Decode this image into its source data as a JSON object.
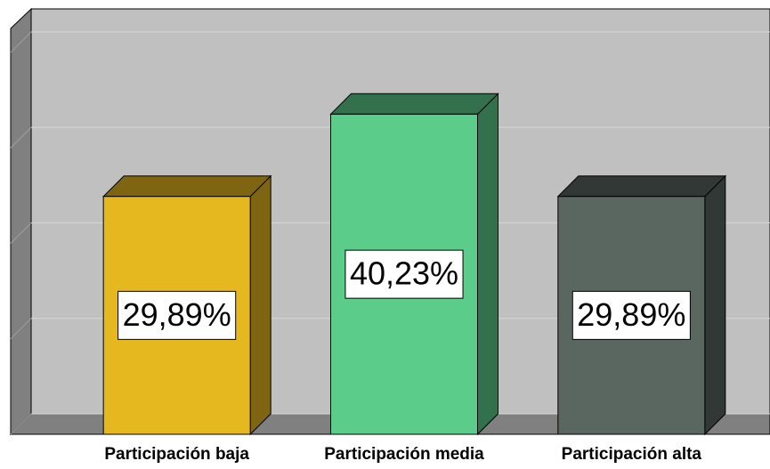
{
  "chart_data": {
    "type": "bar",
    "categories": [
      "Participación baja",
      "Participación media",
      "Participación alta"
    ],
    "values": [
      29.89,
      40.23,
      29.89
    ],
    "value_labels": [
      "29,89%",
      "40,23%",
      "29,89%"
    ],
    "colors": [
      "#e6b820",
      "#5ccc8a",
      "#5a6660"
    ],
    "ylim": [
      0,
      51
    ],
    "yticks": [
      0,
      12,
      24,
      36,
      48
    ],
    "grid": true
  }
}
